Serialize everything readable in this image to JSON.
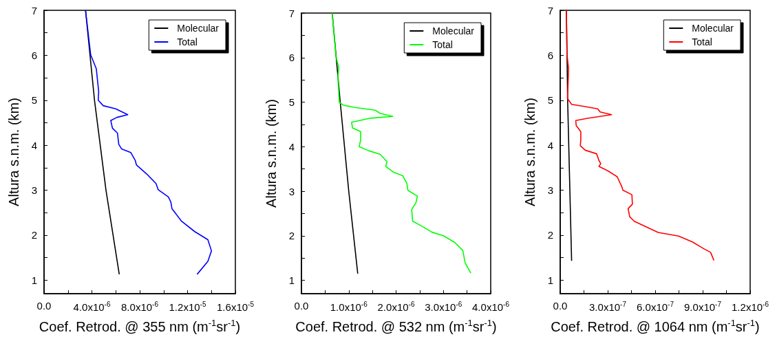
{
  "chart_data": [
    {
      "type": "line",
      "xlabel": "Coef. Retrod. @ 355 nm (m$^{-1}$sr$^{-1}$)",
      "ylabel": "Altura s.n.m. (km)",
      "xlim": [
        0,
        1.6e-05
      ],
      "xticks": [
        {
          "value": 0,
          "label": "0.0"
        },
        {
          "value": 2e-06,
          "label": null
        },
        {
          "value": 4e-06,
          "label": "4.0x10$^{-6}$"
        },
        {
          "value": 6e-06,
          "label": null
        },
        {
          "value": 8e-06,
          "label": "8.0x10$^{-6}$"
        },
        {
          "value": 1e-05,
          "label": null
        },
        {
          "value": 1.2e-05,
          "label": "1.2x10$^{-5}$"
        },
        {
          "value": 1.4e-05,
          "label": null
        },
        {
          "value": 1.6e-05,
          "label": "1.6x10$^{-5}$"
        }
      ],
      "ylim": [
        0.7,
        7
      ],
      "yticks": [
        1,
        {
          "value": 1.5,
          "label": null
        },
        2,
        {
          "value": 2.5,
          "label": null
        },
        3,
        {
          "value": 3.5,
          "label": null
        },
        4,
        {
          "value": 4.5,
          "label": null
        },
        5,
        {
          "value": 5.5,
          "label": null
        },
        6,
        {
          "value": 6.5,
          "label": null
        },
        7
      ],
      "grid": false,
      "legend": "top right",
      "marker": "none",
      "series": [
        {
          "name": "Molecular",
          "color": "#000000",
          "x": [
            3.47e-06,
            4.22e-06,
            5.18e-06,
            6.29e-06
          ],
          "values": [
            7,
            5,
            3,
            1.13
          ]
        },
        {
          "name": "Total",
          "color": "#0000ff",
          "x": [
            3.47e-06,
            3.9e-06,
            4.37e-06,
            4.57e-06,
            4.53e-06,
            4.95e-06,
            6e-06,
            7e-06,
            6.1e-06,
            5.58e-06,
            5.72e-06,
            6.14e-06,
            6.25e-06,
            6.48e-06,
            7.25e-06,
            7.63e-06,
            7.73e-06,
            8.59e-06,
            9.36e-06,
            9.55e-06,
            1.04e-05,
            1.06e-05,
            1.07e-05,
            1.15e-05,
            1.26e-05,
            1.37e-05,
            1.4e-05,
            1.37e-05,
            1.28e-05
          ],
          "values": [
            7,
            6.01,
            5.7,
            5.19,
            5.0,
            4.88,
            4.81,
            4.68,
            4.62,
            4.55,
            4.38,
            4.27,
            4.02,
            3.92,
            3.84,
            3.66,
            3.56,
            3.36,
            3.15,
            3.01,
            2.85,
            2.74,
            2.59,
            2.31,
            2.08,
            1.9,
            1.65,
            1.42,
            1.13
          ]
        }
      ]
    },
    {
      "type": "line",
      "xlabel": "Coef. Retrod. @ 532 nm (m$^{-1}$sr$^{-1}$)",
      "ylabel": "Altura s.n.m. (km)",
      "xlim": [
        0,
        4e-06
      ],
      "xticks": [
        {
          "value": 0,
          "label": "0.0"
        },
        {
          "value": 5e-07,
          "label": null
        },
        {
          "value": 1e-06,
          "label": "1.0x10$^{-6}$"
        },
        {
          "value": 1.5e-06,
          "label": null
        },
        {
          "value": 2e-06,
          "label": "2.0x10$^{-6}$"
        },
        {
          "value": 2.5e-06,
          "label": null
        },
        {
          "value": 3e-06,
          "label": "3.0x10$^{-6}$"
        },
        {
          "value": 3.5e-06,
          "label": null
        },
        {
          "value": 4e-06,
          "label": "4.0x10$^{-6}$"
        }
      ],
      "ylim": [
        0.7,
        7
      ],
      "yticks": [
        1,
        {
          "value": 1.5,
          "label": null
        },
        2,
        {
          "value": 2.5,
          "label": null
        },
        3,
        {
          "value": 3.5,
          "label": null
        },
        4,
        {
          "value": 4.5,
          "label": null
        },
        5,
        {
          "value": 5.5,
          "label": null
        },
        6,
        {
          "value": 6.5,
          "label": null
        },
        7
      ],
      "grid": false,
      "legend": "top right",
      "marker": "none",
      "series": [
        {
          "name": "Molecular",
          "color": "#000000",
          "x": [
            6.5e-07,
            8.2e-07,
            1e-06,
            1.19e-06
          ],
          "values": [
            7,
            5,
            3,
            1.15
          ]
        },
        {
          "name": "Total",
          "color": "#00ff00",
          "x": [
            6.5e-07,
            7.3e-07,
            7.9e-07,
            7.7e-07,
            8e-07,
            8.9e-07,
            1.13e-06,
            1.56e-06,
            1.66e-06,
            1.93e-06,
            1.46e-06,
            1.06e-06,
            1.08e-06,
            1.25e-06,
            1.25e-06,
            1.22e-06,
            1.42e-06,
            1.66e-06,
            1.75e-06,
            1.81e-06,
            1.78e-06,
            1.94e-06,
            2.14e-06,
            2.23e-06,
            2.25e-06,
            2.45e-06,
            2.42e-06,
            2.33e-06,
            2.35e-06,
            2.52e-06,
            2.76e-06,
            3e-06,
            3.24e-06,
            3.41e-06,
            3.46e-06,
            3.58e-06
          ],
          "values": [
            7,
            6.02,
            5.77,
            5.56,
            5.0,
            4.93,
            4.88,
            4.82,
            4.75,
            4.68,
            4.64,
            4.55,
            4.42,
            4.34,
            4.14,
            4.0,
            3.91,
            3.83,
            3.73,
            3.66,
            3.56,
            3.43,
            3.35,
            3.17,
            3.02,
            2.89,
            2.74,
            2.59,
            2.33,
            2.23,
            2.08,
            2.0,
            1.85,
            1.67,
            1.39,
            1.16
          ]
        }
      ]
    },
    {
      "type": "line",
      "xlabel": "Coef. Retrod. @ 1064 nm (m$^{-1}$sr$^{-1}$)",
      "ylabel": "Altura s.n.m. (km)",
      "xlim": [
        0,
        1.2e-06
      ],
      "xticks": [
        {
          "value": 0,
          "label": "0.0"
        },
        {
          "value": 1.5e-07,
          "label": null
        },
        {
          "value": 3e-07,
          "label": "3.0x10$^{-7}$"
        },
        {
          "value": 4.5e-07,
          "label": null
        },
        {
          "value": 6e-07,
          "label": "6.0x10$^{-7}$"
        },
        {
          "value": 7.5e-07,
          "label": null
        },
        {
          "value": 9e-07,
          "label": "9.0x10$^{-7}$"
        },
        {
          "value": 1.05e-06,
          "label": null
        },
        {
          "value": 1.2e-06,
          "label": "1.2x10$^{-6}$"
        }
      ],
      "ylim": [
        0.7,
        7
      ],
      "yticks": [
        1,
        {
          "value": 1.5,
          "label": null
        },
        2,
        {
          "value": 2.5,
          "label": null
        },
        3,
        {
          "value": 3.5,
          "label": null
        },
        4,
        {
          "value": 4.5,
          "label": null
        },
        5,
        {
          "value": 5.5,
          "label": null
        },
        6,
        {
          "value": 6.5,
          "label": null
        },
        7
      ],
      "grid": false,
      "legend": "top right",
      "marker": "none",
      "series": [
        {
          "name": "Molecular",
          "color": "#000000",
          "x": [
            3.9e-08,
            4.7e-08,
            7.2e-08
          ],
          "values": [
            7,
            4.99,
            1.43
          ]
        },
        {
          "name": "Total",
          "color": "#ff0000",
          "x": [
            3.9e-08,
            4.3e-08,
            5.3e-08,
            4.6e-08,
            7.2e-08,
            1.58e-07,
            2.37e-07,
            2.52e-07,
            3.24e-07,
            1.73e-07,
            9.8e-08,
            1.01e-07,
            1.3e-07,
            1.3e-07,
            1.27e-07,
            1.58e-07,
            2.3e-07,
            2.45e-07,
            2.56e-07,
            2.45e-07,
            3.02e-07,
            3.6e-07,
            3.89e-07,
            3.96e-07,
            4.53e-07,
            4.56e-07,
            4.29e-07,
            4.39e-07,
            4.68e-07,
            5.47e-07,
            6.19e-07,
            7.48e-07,
            8.35e-07,
            9.07e-07,
            9.5e-07,
            9.71e-07
          ],
          "values": [
            7,
            6.01,
            5.7,
            5.04,
            4.91,
            4.86,
            4.81,
            4.74,
            4.68,
            4.6,
            4.55,
            4.44,
            4.3,
            4.12,
            3.99,
            3.89,
            3.81,
            3.66,
            3.59,
            3.53,
            3.43,
            3.3,
            3.08,
            3.0,
            2.9,
            2.69,
            2.59,
            2.41,
            2.31,
            2.18,
            2.06,
            1.98,
            1.85,
            1.7,
            1.62,
            1.44
          ]
        }
      ]
    }
  ]
}
